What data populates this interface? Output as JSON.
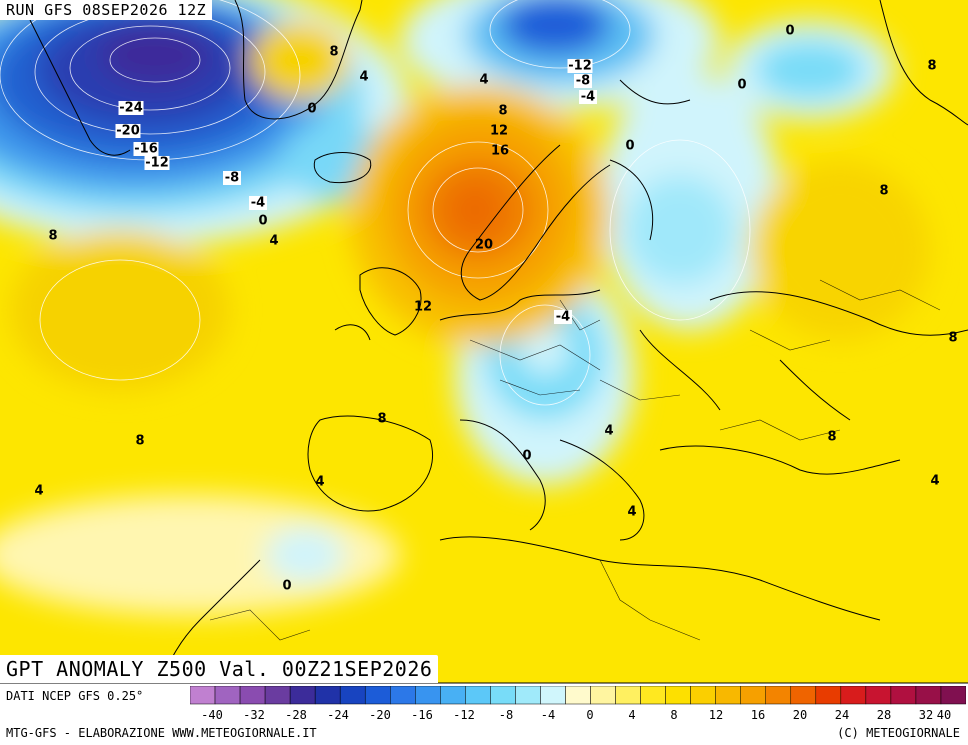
{
  "header": {
    "run_title": "RUN GFS 08SEP2026 12Z",
    "field_title": "GPT ANOMALY Z500 Val. 00Z21SEP2026"
  },
  "footer": {
    "source": "DATI NCEP GFS 0.25°",
    "credit": "MTG-GFS - ELABORAZIONE WWW.METEOGIORNALE.IT",
    "copyright": "(C) METEOGIORNALE"
  },
  "legend": {
    "tick_labels": [
      "-40",
      "-32",
      "-28",
      "-24",
      "-20",
      "-16",
      "-12",
      "-8",
      "-4",
      "0",
      "4",
      "8",
      "12",
      "16",
      "20",
      "24",
      "28",
      "32",
      "40"
    ],
    "colors": [
      "#c080d0",
      "#a064c0",
      "#8a4cb0",
      "#6a3ca0",
      "#3c2c9a",
      "#2032a8",
      "#1844c0",
      "#1c5cd8",
      "#2c78e8",
      "#3894f0",
      "#48b0f4",
      "#5cc8f8",
      "#78dcf8",
      "#a0eafa",
      "#d0f6fc",
      "#fffacc",
      "#fff5a0",
      "#fff060",
      "#ffe820",
      "#fde000",
      "#fbcf00",
      "#f8b800",
      "#f6a000",
      "#f38400",
      "#ef6400",
      "#e83c00",
      "#d81c1c",
      "#c81430",
      "#b01040",
      "#981048",
      "#801050"
    ]
  },
  "map_labels": [
    {
      "text": "-24"
    },
    {
      "text": "-20"
    },
    {
      "text": "-16"
    },
    {
      "text": "-12"
    },
    {
      "text": "-8"
    },
    {
      "text": "-4"
    },
    {
      "text": "0"
    },
    {
      "text": "4"
    },
    {
      "text": "8"
    },
    {
      "text": "4"
    },
    {
      "text": "0"
    },
    {
      "text": "4"
    },
    {
      "text": "8"
    },
    {
      "text": "12"
    },
    {
      "text": "16"
    },
    {
      "text": "20"
    },
    {
      "text": "-12"
    },
    {
      "text": "-8"
    },
    {
      "text": "-4"
    },
    {
      "text": "0"
    },
    {
      "text": "0"
    },
    {
      "text": "0"
    },
    {
      "text": "8"
    },
    {
      "text": "8"
    },
    {
      "text": "8"
    },
    {
      "text": "8"
    },
    {
      "text": "12"
    },
    {
      "text": "-4"
    },
    {
      "text": "8"
    },
    {
      "text": "8"
    },
    {
      "text": "4"
    },
    {
      "text": "4"
    },
    {
      "text": "0"
    },
    {
      "text": "4"
    },
    {
      "text": "4"
    },
    {
      "text": "8"
    },
    {
      "text": "4"
    },
    {
      "text": "0"
    }
  ]
}
